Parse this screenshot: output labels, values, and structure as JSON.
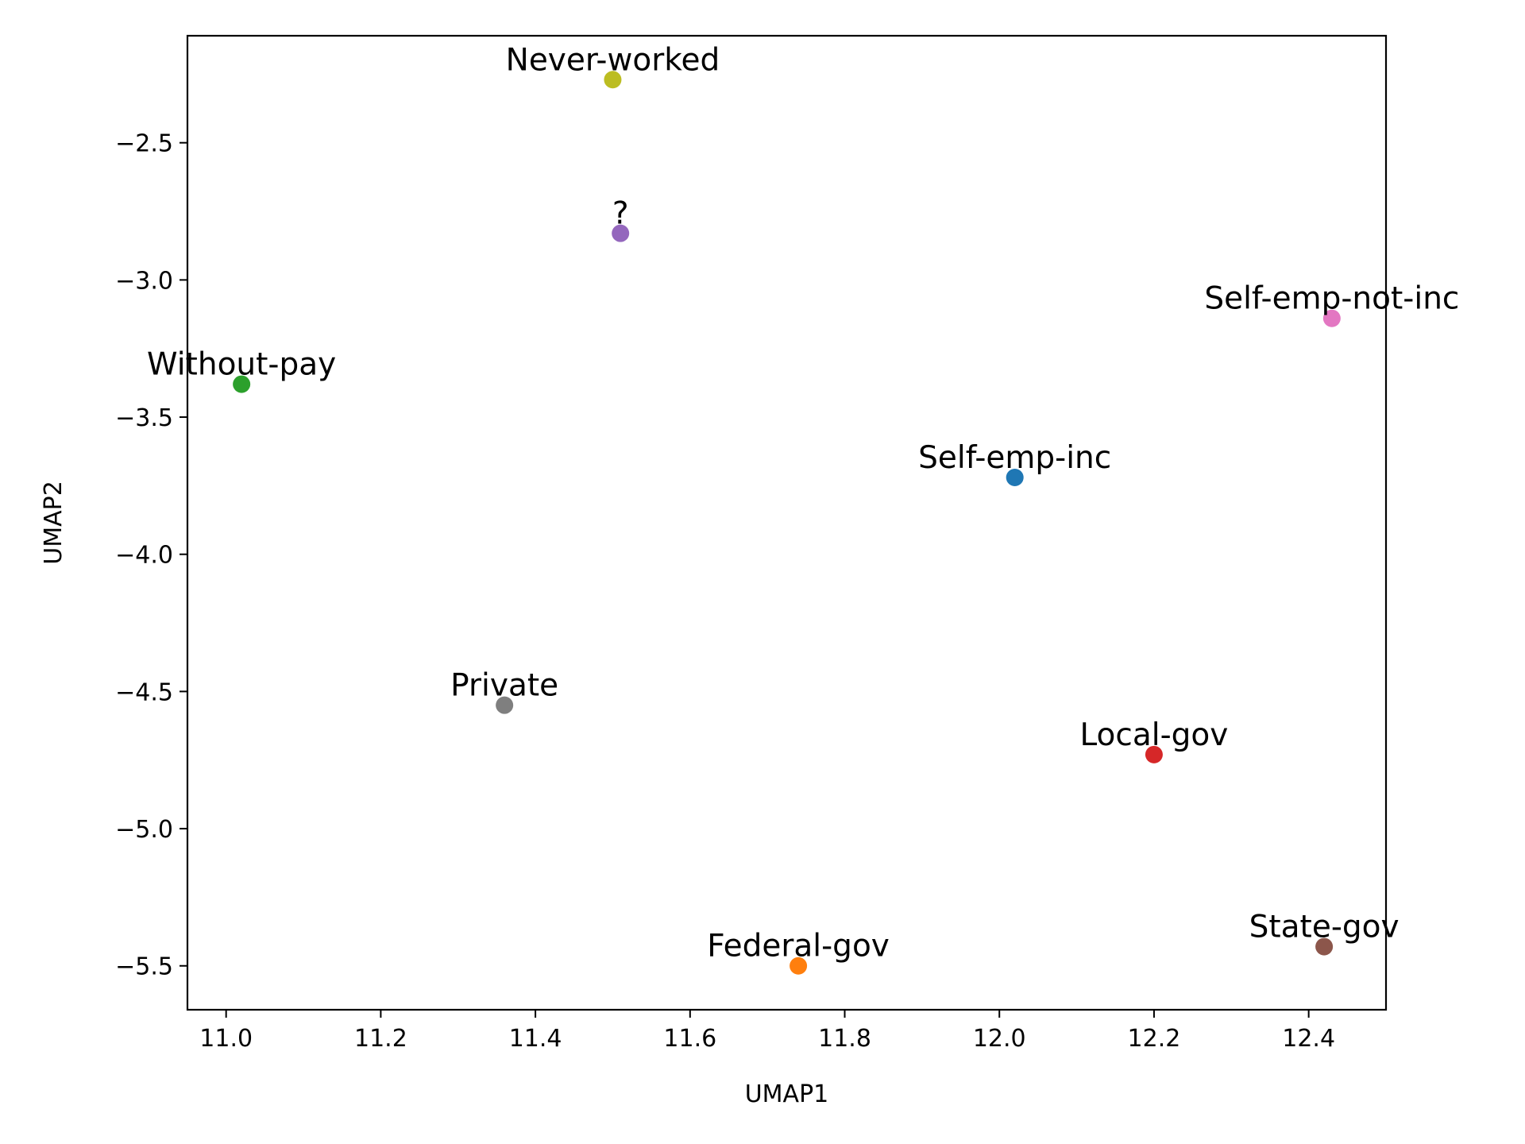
{
  "chart_data": {
    "type": "scatter",
    "title": "",
    "xlabel": "UMAP1",
    "ylabel": "UMAP2",
    "xlim": [
      10.95,
      12.5
    ],
    "ylim": [
      -5.66,
      -2.11
    ],
    "xticks": [
      11.0,
      11.2,
      11.4,
      11.6,
      11.8,
      12.0,
      12.2,
      12.4
    ],
    "xtick_labels": [
      "11.0",
      "11.2",
      "11.4",
      "11.6",
      "11.8",
      "12.0",
      "12.2",
      "12.4"
    ],
    "yticks": [
      -2.5,
      -3.0,
      -3.5,
      -4.0,
      -4.5,
      -5.0,
      -5.5
    ],
    "ytick_labels": [
      "−2.5",
      "−3.0",
      "−3.5",
      "−4.0",
      "−4.5",
      "−5.0",
      "−5.5"
    ],
    "grid": false,
    "points": [
      {
        "label": "Self-emp-inc",
        "x": 12.02,
        "y": -3.72,
        "color": "#1f77b4"
      },
      {
        "label": "Federal-gov",
        "x": 11.74,
        "y": -5.5,
        "color": "#ff7f0e"
      },
      {
        "label": "Without-pay",
        "x": 11.02,
        "y": -3.38,
        "color": "#2ca02c"
      },
      {
        "label": "Local-gov",
        "x": 12.2,
        "y": -4.73,
        "color": "#d62728"
      },
      {
        "label": "?",
        "x": 11.51,
        "y": -2.83,
        "color": "#9467bd"
      },
      {
        "label": "State-gov",
        "x": 12.42,
        "y": -5.43,
        "color": "#8c564b"
      },
      {
        "label": "Self-emp-not-inc",
        "x": 12.43,
        "y": -3.14,
        "color": "#e377c2"
      },
      {
        "label": "Private",
        "x": 11.36,
        "y": -4.55,
        "color": "#7f7f7f"
      },
      {
        "label": "Never-worked",
        "x": 11.5,
        "y": -2.27,
        "color": "#bcbd22"
      }
    ]
  }
}
